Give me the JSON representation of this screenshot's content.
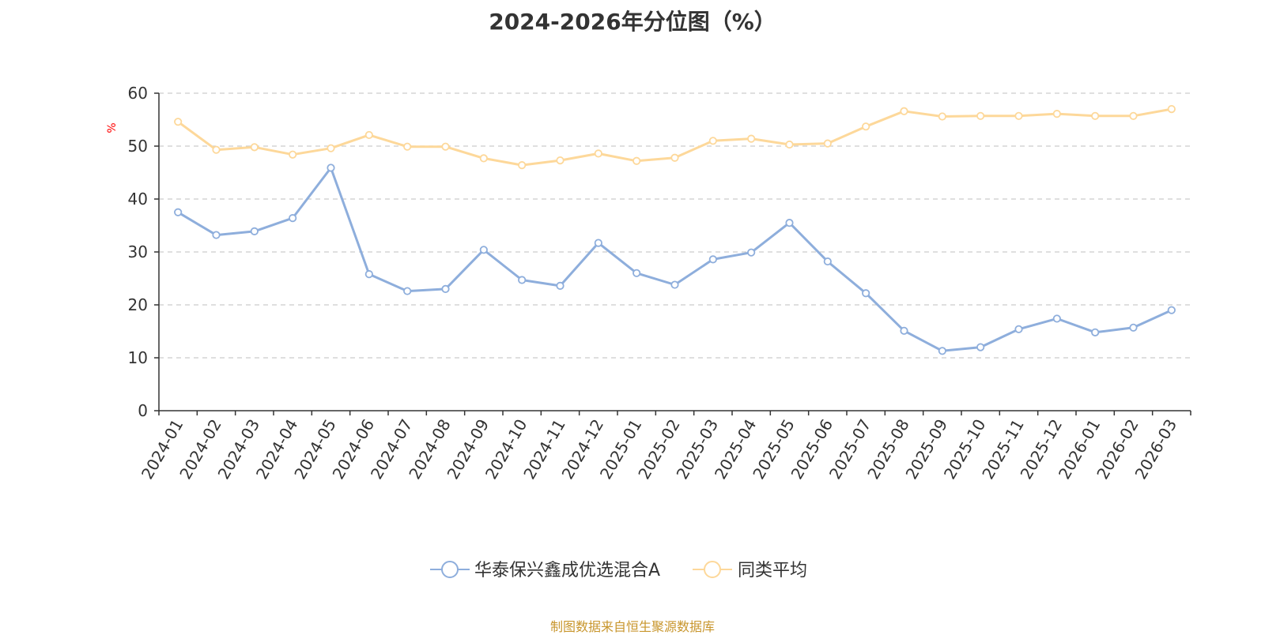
{
  "colors": {
    "series_a": "#8eaedc",
    "series_b": "#fdd89a",
    "axis": "#333333",
    "grid": "#cccccc",
    "unit": "#ff0000",
    "source": "#c8962d"
  },
  "source_note": "制图数据来自恒生聚源数据库",
  "chart_data": {
    "type": "line",
    "title": "2024-2026年分位图（%）",
    "ylabel": "%",
    "ylim": [
      0,
      60
    ],
    "yticks": [
      0,
      10,
      20,
      30,
      40,
      50,
      60
    ],
    "grid": true,
    "legend": "bottom-center",
    "categories": [
      "2024-01",
      "2024-02",
      "2024-03",
      "2024-04",
      "2024-05",
      "2024-06",
      "2024-07",
      "2024-08",
      "2024-09",
      "2024-10",
      "2024-11",
      "2024-12",
      "2025-01",
      "2025-02",
      "2025-03",
      "2025-04",
      "2025-05",
      "2025-06",
      "2025-07",
      "2025-08",
      "2025-09",
      "2025-10",
      "2025-11",
      "2025-12",
      "2026-01",
      "2026-02",
      "2026-03"
    ],
    "series": [
      {
        "name": "华泰保兴鑫成优选混合A",
        "color": "#8eaedc",
        "values": [
          37.5,
          33.2,
          33.9,
          36.4,
          45.9,
          25.8,
          22.6,
          23.0,
          30.4,
          24.7,
          23.6,
          31.7,
          26.0,
          23.8,
          28.6,
          29.9,
          35.5,
          28.2,
          22.2,
          15.1,
          11.3,
          12.0,
          15.4,
          17.4,
          14.8,
          15.7,
          19.0
        ]
      },
      {
        "name": "同类平均",
        "color": "#fdd89a",
        "values": [
          54.6,
          49.3,
          49.8,
          48.4,
          49.6,
          52.1,
          49.9,
          49.9,
          47.7,
          46.4,
          47.3,
          48.6,
          47.2,
          47.8,
          51.0,
          51.4,
          50.3,
          50.5,
          53.7,
          56.6,
          55.6,
          55.7,
          55.7,
          56.1,
          55.7,
          55.7,
          57.0
        ]
      }
    ]
  }
}
